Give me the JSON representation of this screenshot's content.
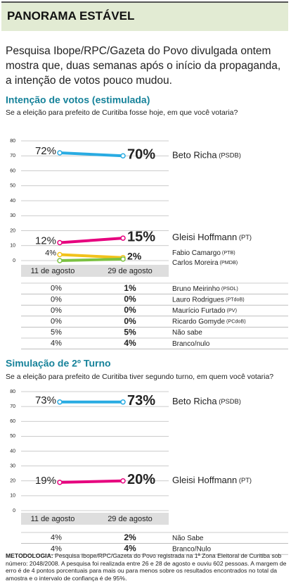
{
  "header": {
    "title": "PANORAMA ESTÁVEL"
  },
  "lead": "Pesquisa Ibope/RPC/Gazeta do Povo divulgada ontem mostra que, duas semanas após o início da propaganda, a intenção de votos pouco mudou.",
  "chart_data": [
    {
      "type": "line",
      "title": "Intenção de votos (estimulada)",
      "subtitle": "Se a eleição para prefeito de Curitiba fosse hoje, em que você votaria?",
      "categories": [
        "11 de agosto",
        "29 de agosto"
      ],
      "ylim": [
        0,
        80
      ],
      "yticks": [
        0,
        10,
        20,
        30,
        40,
        50,
        60,
        70,
        80
      ],
      "grid": true,
      "series": [
        {
          "name": "Beto Richa",
          "party": "(PSDB)",
          "color": "#29abe2",
          "values": [
            72,
            70
          ],
          "value_labels": [
            "72%",
            "70%"
          ]
        },
        {
          "name": "Gleisi Hoffmann",
          "party": "(PT)",
          "color": "#e6007e",
          "values": [
            12,
            15
          ],
          "value_labels": [
            "12%",
            "15%"
          ]
        },
        {
          "name": "Fabio Camargo",
          "party": "(PTB)",
          "color": "#f2c21b",
          "values": [
            4,
            2
          ],
          "value_labels": [
            "4%",
            "2%"
          ]
        },
        {
          "name": "Carlos Moreira",
          "party": "(PMDB)",
          "color": "#7cc242",
          "values": [
            0,
            1
          ]
        }
      ],
      "table": [
        {
          "name": "Bruno Meirinho",
          "party": "(PSOL)",
          "values": [
            0,
            1
          ],
          "value_labels": [
            "0%",
            "1%"
          ]
        },
        {
          "name": "Lauro Rodrigues",
          "party": "(PTdoB)",
          "values": [
            0,
            0
          ],
          "value_labels": [
            "0%",
            "0%"
          ]
        },
        {
          "name": "Maurício Furtado",
          "party": "(PV)",
          "values": [
            0,
            0
          ],
          "value_labels": [
            "0%",
            "0%"
          ]
        },
        {
          "name": "Ricardo Gomyde",
          "party": "(PCdoB)",
          "values": [
            0,
            0
          ],
          "value_labels": [
            "0%",
            "0%"
          ]
        },
        {
          "name": "Não sabe",
          "values": [
            5,
            5
          ],
          "value_labels": [
            "5%",
            "5%"
          ]
        },
        {
          "name": "Branco/nulo",
          "values": [
            4,
            4
          ],
          "value_labels": [
            "4%",
            "4%"
          ]
        }
      ]
    },
    {
      "type": "line",
      "title": "Simulação de 2º Turno",
      "subtitle": "Se a eleição para prefeito de Curitiba tiver segundo turno, em quem você votaria?",
      "categories": [
        "11 de agosto",
        "29 de agosto"
      ],
      "ylim": [
        0,
        80
      ],
      "yticks": [
        0,
        10,
        20,
        30,
        40,
        50,
        60,
        70,
        80
      ],
      "grid": true,
      "series": [
        {
          "name": "Beto Richa",
          "party": "(PSDB)",
          "color": "#29abe2",
          "values": [
            73,
            73
          ],
          "value_labels": [
            "73%",
            "73%"
          ]
        },
        {
          "name": "Gleisi Hoffmann",
          "party": "(PT)",
          "color": "#e6007e",
          "values": [
            19,
            20
          ],
          "value_labels": [
            "19%",
            "20%"
          ]
        }
      ],
      "table": [
        {
          "name": "Não Sabe",
          "values": [
            4,
            2
          ],
          "value_labels": [
            "4%",
            "2%"
          ]
        },
        {
          "name": "Branco/Nulo",
          "values": [
            4,
            4
          ],
          "value_labels": [
            "4%",
            "4%"
          ]
        }
      ]
    }
  ],
  "methodology": {
    "label": "METODOLOGIA:",
    "text": "Pesquisa Ibope/RPC/Gazeta do Povo registrada na 1ª Zona Eleitoral de Curitiba sob número: 2048/2008. A pesquisa foi realizada entre 26 e 28 de agosto e ouviu 602 pessoas. A margem de erro é de 4 pontos porcentuais para mais ou para menos sobre os resultados encontrados no total da amostra e o intervalo de confiança é de 95%."
  }
}
